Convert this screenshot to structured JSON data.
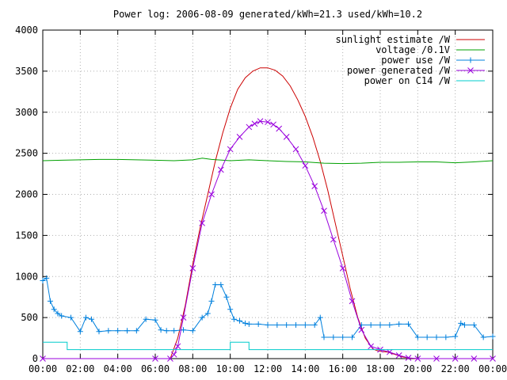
{
  "chart_data": {
    "type": "line",
    "title": "Power log: 2006-08-09 generated/kWh=21.3 used/kWh=10.2",
    "xlabel": "",
    "ylabel": "",
    "xlim": [
      0,
      24
    ],
    "ylim": [
      0,
      4000
    ],
    "x_ticks": [
      "00:00",
      "02:00",
      "04:00",
      "06:00",
      "08:00",
      "10:00",
      "12:00",
      "14:00",
      "16:00",
      "18:00",
      "20:00",
      "22:00",
      "00:00"
    ],
    "y_ticks": [
      "0",
      "500",
      "1000",
      "1500",
      "2000",
      "2500",
      "3000",
      "3500",
      "4000"
    ],
    "grid": true,
    "legend_position": "top-right",
    "series": [
      {
        "name": "sunlight estimate /W",
        "color": "#cc0000",
        "marker": "none",
        "x": [
          6.8,
          7.2,
          7.6,
          8.0,
          8.4,
          8.8,
          9.2,
          9.6,
          10.0,
          10.4,
          10.8,
          11.2,
          11.6,
          12.0,
          12.4,
          12.8,
          13.2,
          13.6,
          14.0,
          14.4,
          14.8,
          15.2,
          15.6,
          16.0,
          16.4,
          16.8,
          17.2,
          17.6,
          17.8,
          18.0,
          18.4,
          18.8,
          19.2,
          19.6,
          20.0
        ],
        "y": [
          0,
          250,
          650,
          1150,
          1600,
          2000,
          2400,
          2750,
          3050,
          3280,
          3420,
          3500,
          3540,
          3540,
          3510,
          3440,
          3320,
          3150,
          2950,
          2700,
          2400,
          2050,
          1650,
          1250,
          850,
          500,
          250,
          120,
          100,
          90,
          80,
          50,
          20,
          5,
          0
        ]
      },
      {
        "name": "voltage /0.1V",
        "color": "#00a000",
        "marker": "none",
        "x": [
          0,
          1,
          2,
          3,
          4,
          5,
          6,
          7,
          8,
          8.5,
          9,
          10,
          11,
          12,
          13,
          14,
          15,
          16,
          17,
          18,
          19,
          20,
          21,
          22,
          23,
          24
        ],
        "y": [
          2410,
          2415,
          2420,
          2425,
          2425,
          2420,
          2415,
          2410,
          2420,
          2440,
          2425,
          2410,
          2420,
          2410,
          2400,
          2395,
          2380,
          2375,
          2380,
          2390,
          2390,
          2395,
          2395,
          2385,
          2395,
          2410
        ]
      },
      {
        "name": "power use /W",
        "color": "#0080dd",
        "marker": "+",
        "x": [
          0,
          0.2,
          0.4,
          0.6,
          0.8,
          1.0,
          1.5,
          2.0,
          2.3,
          2.6,
          3.0,
          3.5,
          4.0,
          4.5,
          5.0,
          5.5,
          6.0,
          6.3,
          6.6,
          7.0,
          7.5,
          8.0,
          8.5,
          8.8,
          9.0,
          9.2,
          9.5,
          9.8,
          10.0,
          10.2,
          10.5,
          10.8,
          11.0,
          11.5,
          12.0,
          12.5,
          13.0,
          13.5,
          14.0,
          14.5,
          14.8,
          15.0,
          15.5,
          16.0,
          16.5,
          17.0,
          17.5,
          18.0,
          18.5,
          19.0,
          19.5,
          20.0,
          20.5,
          21.0,
          21.5,
          22.0,
          22.3,
          22.5,
          23.0,
          23.5,
          24.0
        ],
        "y": [
          950,
          980,
          700,
          600,
          550,
          520,
          500,
          330,
          500,
          480,
          330,
          340,
          340,
          340,
          340,
          480,
          470,
          350,
          340,
          340,
          350,
          340,
          500,
          550,
          700,
          900,
          900,
          750,
          600,
          480,
          460,
          430,
          420,
          420,
          410,
          410,
          410,
          410,
          410,
          410,
          500,
          260,
          260,
          260,
          260,
          410,
          410,
          410,
          410,
          420,
          420,
          260,
          260,
          260,
          260,
          270,
          430,
          410,
          410,
          260,
          270
        ]
      },
      {
        "name": "power generated /W",
        "color": "#9900dd",
        "marker": "x",
        "x": [
          0,
          6,
          6.8,
          7.0,
          7.2,
          7.5,
          8.0,
          8.5,
          9.0,
          9.5,
          10.0,
          10.5,
          11.0,
          11.3,
          11.6,
          12.0,
          12.3,
          12.6,
          13.0,
          13.5,
          14.0,
          14.5,
          15.0,
          15.5,
          16.0,
          16.5,
          17.0,
          17.5,
          18.0,
          18.5,
          19.0,
          19.5,
          20.0,
          21.0,
          22.0,
          23.0,
          24.0
        ],
        "y": [
          0,
          0,
          0,
          50,
          150,
          500,
          1100,
          1650,
          2000,
          2300,
          2550,
          2700,
          2820,
          2860,
          2890,
          2880,
          2850,
          2800,
          2700,
          2550,
          2350,
          2100,
          1800,
          1450,
          1100,
          700,
          350,
          150,
          110,
          80,
          40,
          10,
          0,
          0,
          0,
          0,
          0
        ]
      },
      {
        "name": "power on C14 /W",
        "color": "#00cccc",
        "marker": "none",
        "x": [
          0,
          0.5,
          0.5,
          1.3,
          1.3,
          2.0,
          4.0,
          6.0,
          8.0,
          9.0,
          10.0,
          10.0,
          11.0,
          11.0,
          12.0,
          14.0,
          16.0,
          18.0,
          20.0,
          22.0,
          24.0
        ],
        "y": [
          200,
          200,
          200,
          200,
          110,
          110,
          110,
          110,
          110,
          110,
          110,
          200,
          200,
          110,
          110,
          110,
          110,
          110,
          110,
          110,
          110
        ]
      }
    ]
  }
}
